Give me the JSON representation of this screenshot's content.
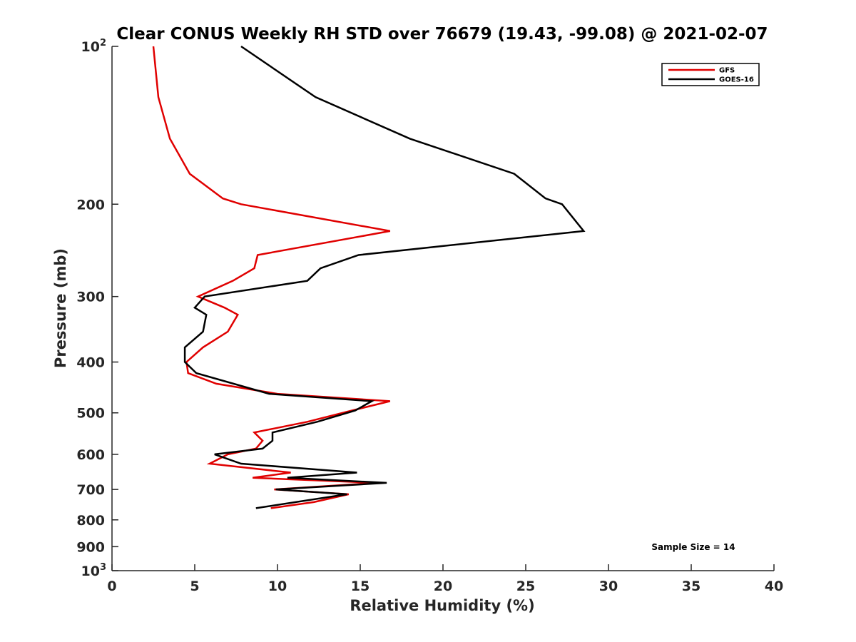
{
  "chart_data": {
    "type": "line",
    "title": "Clear CONUS Weekly RH STD over 76679 (19.43, -99.08) @ 2021-02-07",
    "xlabel": "Relative Humidity (%)",
    "ylabel": "Pressure (mb)",
    "xlim": [
      0,
      40
    ],
    "ylim": [
      100,
      1000
    ],
    "y_scale": "log",
    "y_reversed": true,
    "grid": false,
    "legend_position": "top-right",
    "x_ticks": [
      "0",
      "5",
      "10",
      "15",
      "20",
      "25",
      "30",
      "35",
      "40"
    ],
    "x_tick_values": [
      0,
      5,
      10,
      15,
      20,
      25,
      30,
      35,
      40
    ],
    "y_ticks": [
      {
        "value": 100,
        "base": "10",
        "exp": "2"
      },
      {
        "value": 200,
        "base": "200",
        "exp": ""
      },
      {
        "value": 300,
        "base": "300",
        "exp": ""
      },
      {
        "value": 400,
        "base": "400",
        "exp": ""
      },
      {
        "value": 500,
        "base": "500",
        "exp": ""
      },
      {
        "value": 600,
        "base": "600",
        "exp": ""
      },
      {
        "value": 700,
        "base": "700",
        "exp": ""
      },
      {
        "value": 800,
        "base": "800",
        "exp": ""
      },
      {
        "value": 900,
        "base": "900",
        "exp": ""
      },
      {
        "value": 1000,
        "base": "10",
        "exp": "3"
      }
    ],
    "annotation": "Sample Size = 14",
    "series": [
      {
        "name": "GFS",
        "color": "#e00000",
        "points": [
          [
            2.5,
            100
          ],
          [
            2.8,
            125
          ],
          [
            3.5,
            150
          ],
          [
            4.7,
            175
          ],
          [
            6.7,
            195
          ],
          [
            7.8,
            200
          ],
          [
            16.8,
            225
          ],
          [
            8.8,
            250
          ],
          [
            8.6,
            265
          ],
          [
            7.3,
            280
          ],
          [
            5.2,
            300
          ],
          [
            6.8,
            315
          ],
          [
            7.6,
            325
          ],
          [
            7.0,
            350
          ],
          [
            5.5,
            375
          ],
          [
            4.5,
            400
          ],
          [
            4.6,
            420
          ],
          [
            6.3,
            440
          ],
          [
            10.0,
            460
          ],
          [
            16.8,
            475
          ],
          [
            14.5,
            495
          ],
          [
            11.8,
            520
          ],
          [
            8.6,
            545
          ],
          [
            9.1,
            565
          ],
          [
            8.7,
            585
          ],
          [
            7.0,
            600
          ],
          [
            5.9,
            625
          ],
          [
            10.8,
            650
          ],
          [
            8.5,
            665
          ],
          [
            16.0,
            680
          ],
          [
            9.8,
            700
          ],
          [
            14.3,
            715
          ],
          [
            12.2,
            740
          ],
          [
            9.6,
            760
          ]
        ]
      },
      {
        "name": "GOES-16",
        "color": "#000000",
        "points": [
          [
            7.8,
            100
          ],
          [
            12.3,
            125
          ],
          [
            18.0,
            150
          ],
          [
            24.3,
            175
          ],
          [
            26.2,
            195
          ],
          [
            27.2,
            200
          ],
          [
            28.5,
            225
          ],
          [
            14.9,
            250
          ],
          [
            12.6,
            265
          ],
          [
            11.8,
            280
          ],
          [
            5.6,
            300
          ],
          [
            5.0,
            315
          ],
          [
            5.7,
            325
          ],
          [
            5.5,
            350
          ],
          [
            4.4,
            375
          ],
          [
            4.4,
            400
          ],
          [
            5.1,
            420
          ],
          [
            9.5,
            460
          ],
          [
            15.7,
            475
          ],
          [
            14.7,
            495
          ],
          [
            12.4,
            520
          ],
          [
            9.7,
            545
          ],
          [
            9.7,
            565
          ],
          [
            9.1,
            585
          ],
          [
            6.2,
            600
          ],
          [
            7.8,
            625
          ],
          [
            14.8,
            650
          ],
          [
            10.6,
            665
          ],
          [
            16.6,
            680
          ],
          [
            9.9,
            700
          ],
          [
            14.2,
            715
          ],
          [
            8.7,
            760
          ]
        ]
      }
    ]
  }
}
